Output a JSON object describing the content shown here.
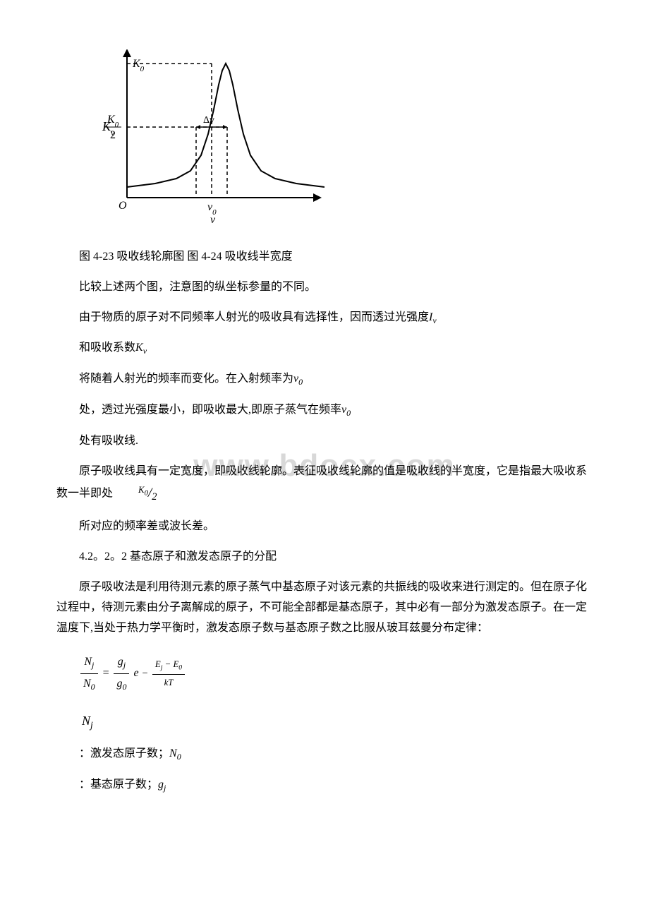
{
  "figure": {
    "type": "line",
    "caption": "图 4-23 吸收线轮廓图 图 4-24 吸收线半宽度",
    "y_axis_label": "Kᵥ",
    "x_axis_label": "v",
    "labels": {
      "K0": "K₀",
      "K0_half_num": "K₀",
      "K0_half_den": "2",
      "delta_v": "Δv",
      "v0": "v₀",
      "O": "O"
    },
    "curve_points": [
      [
        20,
        195
      ],
      [
        60,
        190
      ],
      [
        90,
        183
      ],
      [
        110,
        172
      ],
      [
        125,
        150
      ],
      [
        135,
        120
      ],
      [
        143,
        85
      ],
      [
        150,
        50
      ],
      [
        155,
        30
      ],
      [
        160,
        20
      ],
      [
        165,
        30
      ],
      [
        170,
        50
      ],
      [
        177,
        85
      ],
      [
        185,
        120
      ],
      [
        195,
        150
      ],
      [
        210,
        172
      ],
      [
        230,
        183
      ],
      [
        260,
        190
      ],
      [
        300,
        195
      ]
    ],
    "axis_color": "#000000",
    "curve_color": "#000000",
    "dash_color": "#000000",
    "background_color": "#ffffff",
    "stroke_width": 2,
    "dash_pattern": "5,4",
    "font_family": "Times New Roman",
    "font_size_axis": 16,
    "font_size_label": 16
  },
  "watermark": "www.bdocx.com",
  "p1": "比较上述两个图，注意图的纵坐标参量的不同。",
  "p2_a": "由于物质的原子对不同频率人射光的吸收具有选择性，因而透过光强度",
  "p2_sym": "Iᵥ",
  "p3_a": "和吸收系数",
  "p3_sym": "Kᵥ",
  "p4_a": "将随着人射光的频率而变化。在入射频率为",
  "p4_sym": "v₀",
  "p5_a": "处，透过光强度最小，即吸收最大,即原子蒸气在频率",
  "p5_sym": "v₀",
  "p6": "处有吸收线.",
  "p7_a": "原子吸收线具有一定宽度，即吸收线轮廓。表征吸收线轮廓的值是吸收线的半宽度，它是指最大吸收系数一半即处",
  "p7_frac_top": "K₀",
  "p7_frac_bot": "2",
  "p8": "所对应的频率差或波长差。",
  "section_title": "4.2。2。2 基态原子和激发态原子的分配",
  "p9": "原子吸收法是利用待测元素的原子蒸气中基态原子对该元素的共振线的吸收来进行测定的。但在原子化过程中，待测元素由分子离解成的原子，不可能全部都是基态原子，其中必有一部分为激发态原子。在一定温度下,当处于热力学平衡时，激发态原子数与基态原子数之比服从玻耳兹曼分布定律：",
  "formula": {
    "Nj": "N",
    "Nj_sub": "j",
    "N0": "N",
    "N0_sub": "0",
    "gj": "g",
    "gj_sub": "j",
    "g0": "g",
    "g0_sub": "0",
    "e": "e",
    "Ej": "E",
    "Ej_sub": "j",
    "E0": "E",
    "E0_sub": "0",
    "kT": "kT",
    "minus": "−",
    "equals": "="
  },
  "sym_Nj": "N",
  "sym_Nj_sub": "j",
  "defn1_a": "：激发态原子数；",
  "defn1_sym": "N",
  "defn1_sym_sub": "0",
  "defn2_a": "：基态原子数；",
  "defn2_sym": "g",
  "defn2_sym_sub": "j"
}
